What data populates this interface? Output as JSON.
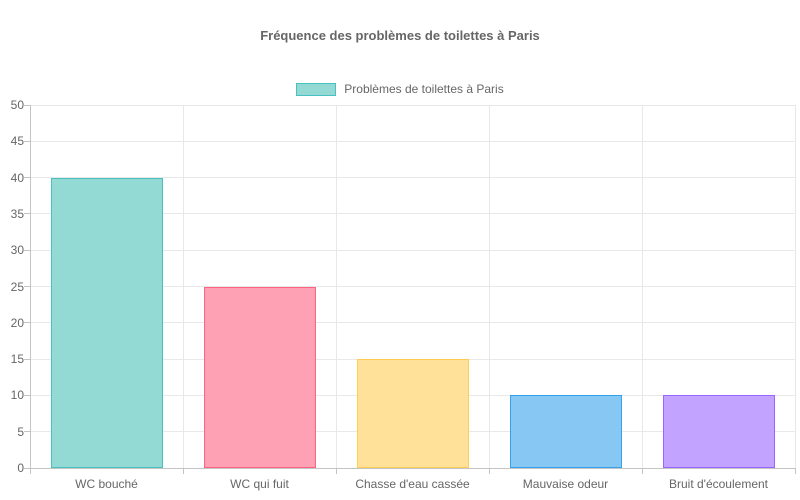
{
  "chart_data": {
    "type": "bar",
    "title": "Fréquence des problèmes de toilettes à Paris",
    "categories": [
      "WC bouché",
      "WC qui fuit",
      "Chasse d'eau cassée",
      "Mauvaise odeur",
      "Bruit d'écoulement"
    ],
    "series": [
      {
        "name": "Problèmes de toilettes à Paris",
        "values": [
          40,
          25,
          15,
          10,
          10
        ]
      }
    ],
    "xlabel": "",
    "ylabel": "",
    "ylim": [
      0,
      50
    ],
    "ytick_step": 5,
    "yticks": [
      0,
      5,
      10,
      15,
      20,
      25,
      30,
      35,
      40,
      45,
      50
    ],
    "grid": true,
    "legend_position": "top",
    "bar_colors": [
      {
        "fill": "#93d9d4",
        "border": "#4bc0c0"
      },
      {
        "fill": "#ffa1b5",
        "border": "#ff6384"
      },
      {
        "fill": "#ffe19a",
        "border": "#ffcd56"
      },
      {
        "fill": "#86c7f3",
        "border": "#36a2eb"
      },
      {
        "fill": "#c2a3ff",
        "border": "#9966ff"
      }
    ]
  },
  "legend": {
    "label": "Problèmes de toilettes à Paris",
    "swatch_fill": "#93d9d4",
    "swatch_border": "#4bc0c0"
  },
  "colors": {
    "text": "#666666",
    "gridline": "#e8e8e8",
    "axis": "#c4c4c4",
    "background": "#ffffff"
  }
}
